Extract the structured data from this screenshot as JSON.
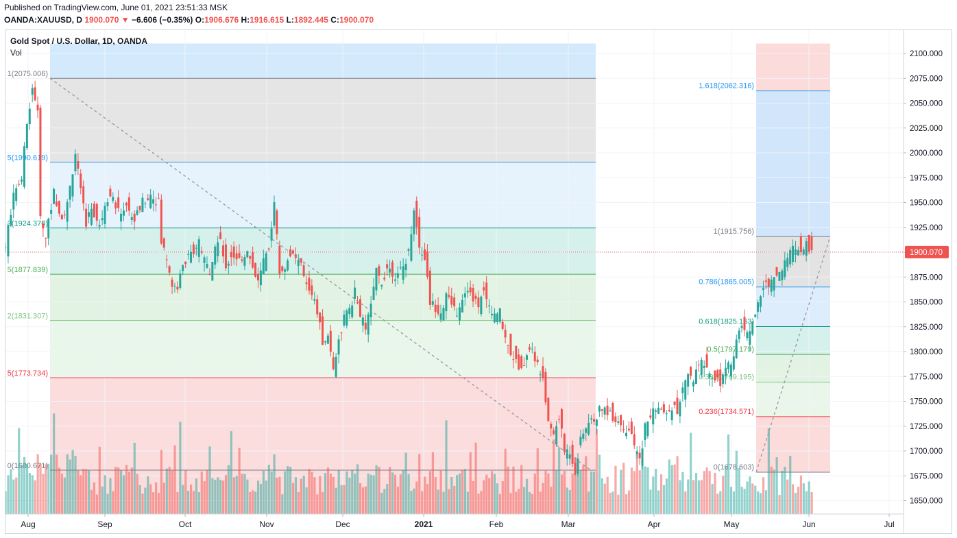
{
  "header": {
    "published": "Published on TradingView.com, June 01, 2021 23:51:33 MSK",
    "symbol": "OANDA:XAUUSD, D",
    "last": "1900.070",
    "arrow": "▼",
    "change": "−6.606 (−0.35%)",
    "o_label": "O:",
    "o_value": "1906.676",
    "h_label": "H:",
    "h_value": "1916.615",
    "l_label": "L:",
    "l_value": "1892.445",
    "c_label": "C:",
    "c_value": "1900.070"
  },
  "chart_title": "Gold Spot / U.S. Dollar, 1D, OANDA",
  "volume_label": "Vol",
  "colors": {
    "up": "#26a69a",
    "down": "#ef5350",
    "price_tag": "#ef5350",
    "fib_blue": "#2196f3",
    "fib_gray": "#787b86",
    "fib_teal": "#089981",
    "fib_green": "#4caf50",
    "fib_red": "#f23645"
  },
  "chart_data": {
    "type": "candlestick",
    "symbol": "XAUUSD",
    "timeframe": "1D",
    "y_range": [
      1635,
      2110
    ],
    "y_ticks": [
      "1650.000",
      "1675.000",
      "1700.000",
      "1725.000",
      "1750.000",
      "1775.000",
      "1800.000",
      "1825.000",
      "1850.000",
      "1875.000",
      "1900.000",
      "1925.000",
      "1950.000",
      "1975.000",
      "2000.000",
      "2025.000",
      "2050.000",
      "2075.000",
      "2100.000"
    ],
    "x_labels": [
      "Aug",
      "Sep",
      "Oct",
      "Nov",
      "Dec",
      "2021",
      "Feb",
      "Mar",
      "Apr",
      "May",
      "Jun",
      "Jul"
    ],
    "last_price_label": "1900.070",
    "last_price": 1900.07,
    "close_path": [
      [
        0,
        1905
      ],
      [
        3,
        1960
      ],
      [
        6,
        1975
      ],
      [
        8,
        2030
      ],
      [
        10,
        2067
      ],
      [
        12,
        2040
      ],
      [
        13,
        1935
      ],
      [
        15,
        1915
      ],
      [
        18,
        1960
      ],
      [
        21,
        1935
      ],
      [
        23,
        1948
      ],
      [
        26,
        2000
      ],
      [
        28,
        1960
      ],
      [
        30,
        1930
      ],
      [
        32,
        1945
      ],
      [
        35,
        1925
      ],
      [
        37,
        1950
      ],
      [
        39,
        1960
      ],
      [
        42,
        1940
      ],
      [
        45,
        1945
      ],
      [
        48,
        1932
      ],
      [
        51,
        1950
      ],
      [
        54,
        1958
      ],
      [
        57,
        1950
      ],
      [
        58,
        1910
      ],
      [
        60,
        1895
      ],
      [
        62,
        1867
      ],
      [
        64,
        1865
      ],
      [
        66,
        1885
      ],
      [
        68,
        1900
      ],
      [
        70,
        1895
      ],
      [
        72,
        1910
      ],
      [
        74,
        1890
      ],
      [
        76,
        1882
      ],
      [
        78,
        1905
      ],
      [
        80,
        1915
      ],
      [
        82,
        1880
      ],
      [
        84,
        1900
      ],
      [
        86,
        1895
      ],
      [
        88,
        1892
      ],
      [
        90,
        1905
      ],
      [
        92,
        1880
      ],
      [
        94,
        1870
      ],
      [
        96,
        1890
      ],
      [
        98,
        1905
      ],
      [
        100,
        1950
      ],
      [
        102,
        1880
      ],
      [
        104,
        1885
      ],
      [
        106,
        1900
      ],
      [
        108,
        1895
      ],
      [
        110,
        1885
      ],
      [
        112,
        1870
      ],
      [
        114,
        1860
      ],
      [
        116,
        1840
      ],
      [
        118,
        1810
      ],
      [
        120,
        1815
      ],
      [
        122,
        1785
      ],
      [
        124,
        1810
      ],
      [
        126,
        1835
      ],
      [
        128,
        1840
      ],
      [
        130,
        1860
      ],
      [
        132,
        1835
      ],
      [
        134,
        1825
      ],
      [
        136,
        1845
      ],
      [
        138,
        1880
      ],
      [
        140,
        1870
      ],
      [
        142,
        1885
      ],
      [
        144,
        1880
      ],
      [
        146,
        1875
      ],
      [
        148,
        1885
      ],
      [
        150,
        1900
      ],
      [
        152,
        1945
      ],
      [
        154,
        1905
      ],
      [
        156,
        1895
      ],
      [
        158,
        1850
      ],
      [
        160,
        1845
      ],
      [
        162,
        1840
      ],
      [
        164,
        1855
      ],
      [
        166,
        1850
      ],
      [
        168,
        1840
      ],
      [
        170,
        1855
      ],
      [
        172,
        1865
      ],
      [
        174,
        1850
      ],
      [
        176,
        1848
      ],
      [
        178,
        1860
      ],
      [
        180,
        1845
      ],
      [
        182,
        1835
      ],
      [
        184,
        1840
      ],
      [
        186,
        1815
      ],
      [
        188,
        1800
      ],
      [
        190,
        1790
      ],
      [
        192,
        1780
      ],
      [
        194,
        1800
      ],
      [
        196,
        1805
      ],
      [
        198,
        1785
      ],
      [
        200,
        1770
      ],
      [
        202,
        1730
      ],
      [
        204,
        1715
      ],
      [
        206,
        1735
      ],
      [
        208,
        1700
      ],
      [
        210,
        1700
      ],
      [
        212,
        1680
      ],
      [
        214,
        1710
      ],
      [
        216,
        1725
      ],
      [
        218,
        1730
      ],
      [
        220,
        1735
      ],
      [
        222,
        1745
      ],
      [
        224,
        1740
      ],
      [
        226,
        1735
      ],
      [
        228,
        1730
      ],
      [
        230,
        1725
      ],
      [
        232,
        1720
      ],
      [
        234,
        1705
      ],
      [
        236,
        1690
      ],
      [
        238,
        1725
      ],
      [
        240,
        1735
      ],
      [
        242,
        1745
      ],
      [
        244,
        1740
      ],
      [
        246,
        1735
      ],
      [
        248,
        1745
      ],
      [
        250,
        1740
      ],
      [
        252,
        1760
      ],
      [
        254,
        1775
      ],
      [
        256,
        1770
      ],
      [
        258,
        1785
      ],
      [
        260,
        1790
      ],
      [
        262,
        1780
      ],
      [
        264,
        1775
      ],
      [
        266,
        1770
      ],
      [
        268,
        1780
      ],
      [
        270,
        1790
      ],
      [
        272,
        1810
      ],
      [
        274,
        1830
      ],
      [
        276,
        1815
      ],
      [
        278,
        1835
      ],
      [
        280,
        1845
      ],
      [
        282,
        1865
      ],
      [
        284,
        1870
      ],
      [
        286,
        1875
      ],
      [
        288,
        1880
      ],
      [
        290,
        1890
      ],
      [
        292,
        1900
      ],
      [
        294,
        1905
      ],
      [
        296,
        1905
      ],
      [
        298,
        1910
      ],
      [
        300,
        1900
      ]
    ],
    "volume_scale_note": "relative volume",
    "trend_line": {
      "from": [
        13,
        2075.006
      ],
      "to": [
        215,
        1680.671
      ],
      "style": "dashed"
    },
    "fib_retracement": {
      "levels": [
        {
          "label": "1(2075.006)",
          "price": 2075.006,
          "color": "#787b86"
        },
        {
          "label": "5(1990.619)",
          "price": 1990.619,
          "color": "#2196f3"
        },
        {
          "label": "3(1924.370)",
          "price": 1924.37,
          "color": "#089981"
        },
        {
          "label": "5(1877.839)",
          "price": 1877.839,
          "color": "#4caf50"
        },
        {
          "label": "2(1831.307)",
          "price": 1831.307,
          "color": "#81c784"
        },
        {
          "label": "5(1773.734)",
          "price": 1773.734,
          "color": "#f23645"
        },
        {
          "label": "0(1680.671)",
          "price": 1680.671,
          "color": "#787b86"
        }
      ]
    },
    "fib_extension": {
      "trend_line": {
        "from": [
          275,
          1678.603
        ],
        "to": [
          300,
          1915.756
        ],
        "style": "dashed"
      },
      "levels": [
        {
          "label": "1.618(2062.316)",
          "price": 2062.316,
          "color": "#2196f3"
        },
        {
          "label": "1(1915.756)",
          "price": 1915.756,
          "color": "#787b86"
        },
        {
          "label": "0.786(1865.005)",
          "price": 1865.005,
          "color": "#2196f3"
        },
        {
          "label": "0.618(1825.163)",
          "price": 1825.163,
          "color": "#089981"
        },
        {
          "label": "0.5(1797.179)",
          "price": 1797.179,
          "color": "#4caf50"
        },
        {
          "label": "0.382(1769.195)",
          "price": 1769.195,
          "color": "#81c784"
        },
        {
          "label": "0.236(1734.571)",
          "price": 1734.571,
          "color": "#f23645"
        },
        {
          "label": "0(1678.603)",
          "price": 1678.603,
          "color": "#787b86"
        }
      ]
    }
  }
}
